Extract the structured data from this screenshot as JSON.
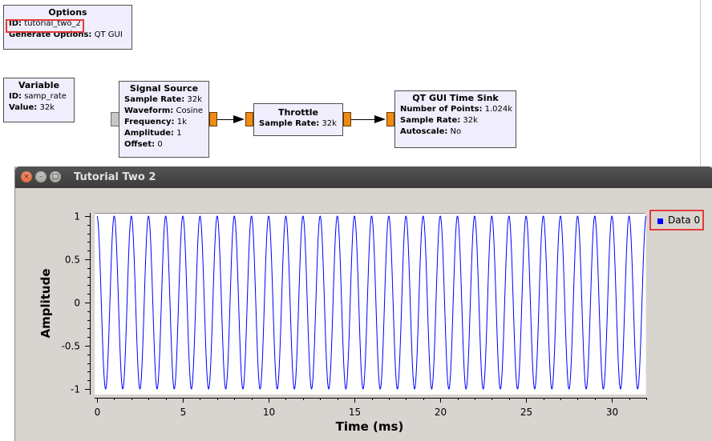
{
  "flowgraph": {
    "options": {
      "title": "Options",
      "params": [
        {
          "key": "ID:",
          "value": "tutorial_two_2"
        },
        {
          "key": "Generate Options:",
          "value": "QT GUI"
        }
      ]
    },
    "variable": {
      "title": "Variable",
      "params": [
        {
          "key": "ID:",
          "value": "samp_rate"
        },
        {
          "key": "Value:",
          "value": "32k"
        }
      ]
    },
    "signal_source": {
      "title": "Signal Source",
      "params": [
        {
          "key": "Sample Rate:",
          "value": "32k"
        },
        {
          "key": "Waveform:",
          "value": "Cosine"
        },
        {
          "key": "Frequency:",
          "value": "1k"
        },
        {
          "key": "Amplitude:",
          "value": "1"
        },
        {
          "key": "Offset:",
          "value": "0"
        }
      ]
    },
    "throttle": {
      "title": "Throttle",
      "params": [
        {
          "key": "Sample Rate:",
          "value": "32k"
        }
      ]
    },
    "time_sink": {
      "title": "QT GUI Time Sink",
      "params": [
        {
          "key": "Number of Points:",
          "value": "1.024k"
        },
        {
          "key": "Sample Rate:",
          "value": "32k"
        },
        {
          "key": "Autoscale:",
          "value": "No"
        }
      ]
    },
    "colors": {
      "block_fill": "#f0eefc",
      "port": "#ef8a13",
      "highlight": "#e43a3a"
    }
  },
  "window": {
    "title": "Tutorial Two 2",
    "buttons": {
      "close": "×",
      "minimize": "–",
      "maximize": "□"
    }
  },
  "chart_data": {
    "type": "line",
    "xlabel": "Time (ms)",
    "ylabel": "Amplitude",
    "xlim": [
      0,
      32
    ],
    "ylim": [
      -1,
      1
    ],
    "xticks": [
      0,
      5,
      10,
      15,
      20,
      25,
      30
    ],
    "yticks": [
      1,
      0.5,
      0,
      -0.5,
      -1
    ],
    "grid": false,
    "legend_position": "top-right",
    "series": [
      {
        "name": "Data 0",
        "color": "#0000ff",
        "function": "cosine",
        "frequency_khz": 1,
        "amplitude": 1,
        "offset": 0,
        "sample_rate_khz": 32,
        "num_points": 1024
      }
    ]
  }
}
